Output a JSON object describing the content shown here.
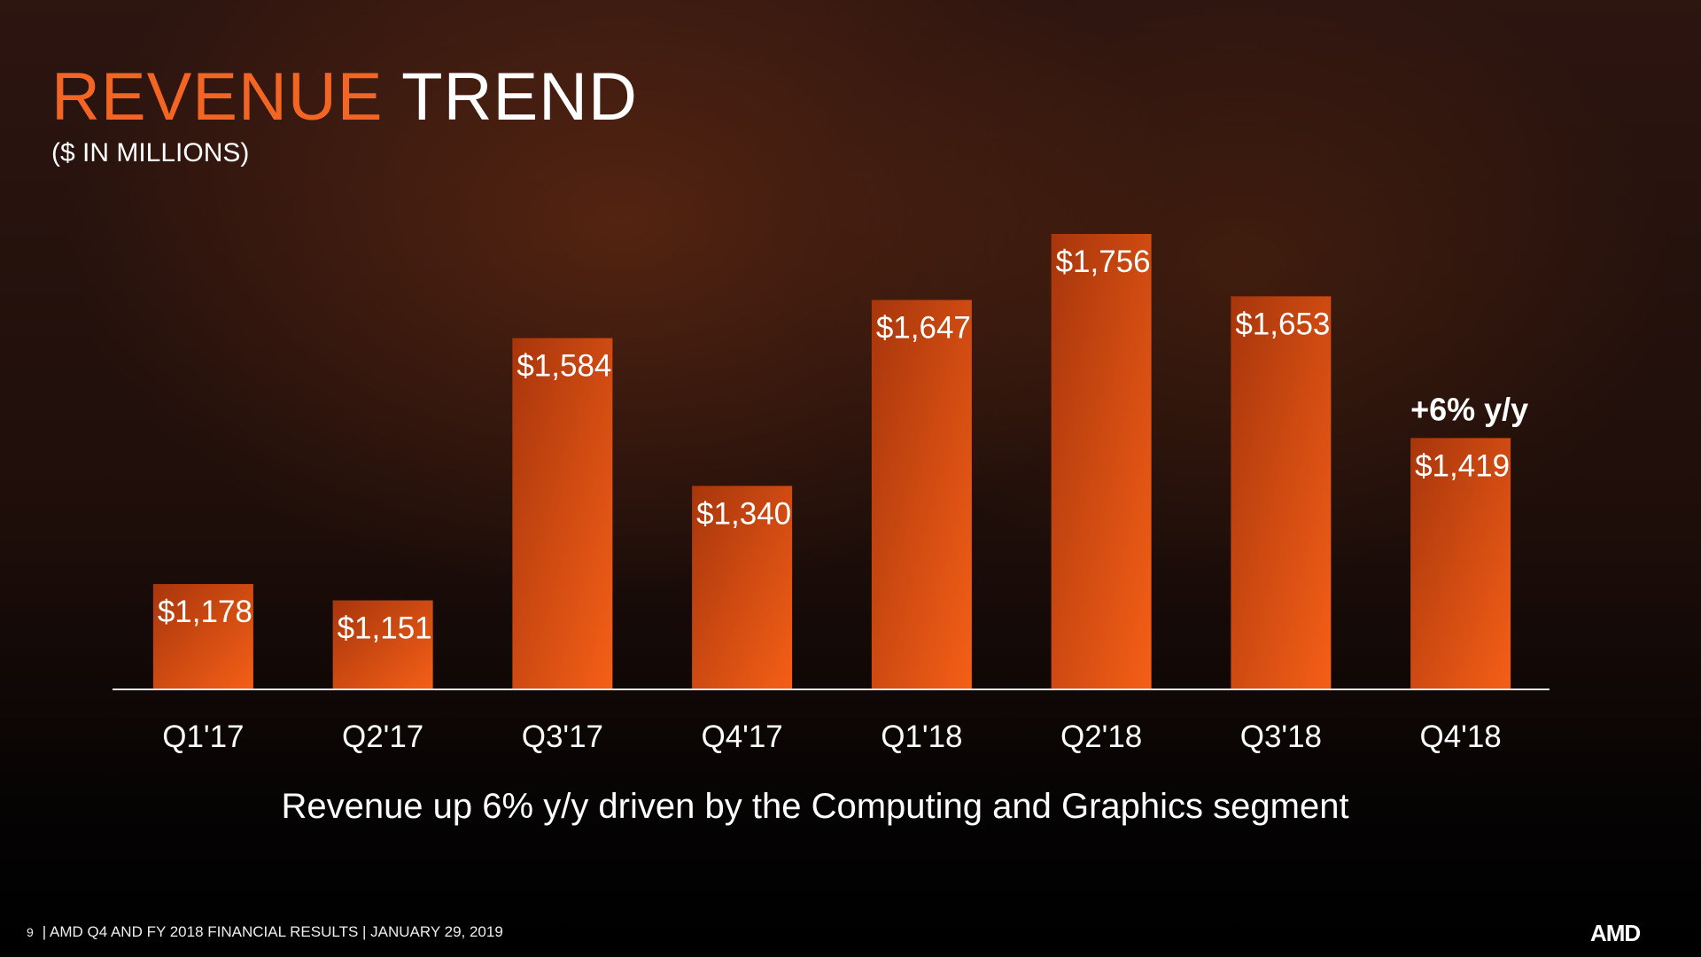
{
  "header": {
    "title_accent": "REVENUE",
    "title_rest": "TREND",
    "subtitle": "($ IN MILLIONS)"
  },
  "chart_data": {
    "type": "bar",
    "title": "REVENUE TREND",
    "ylabel": "($ IN MILLIONS)",
    "categories": [
      "Q1'17",
      "Q2'17",
      "Q3'17",
      "Q4'17",
      "Q1'18",
      "Q2'18",
      "Q3'18",
      "Q4'18"
    ],
    "values": [
      1178,
      1151,
      1584,
      1340,
      1647,
      1756,
      1653,
      1419
    ],
    "data_labels": [
      "$1,178",
      "$1,151",
      "$1,584",
      "$1,340",
      "$1,647",
      "$1,756",
      "$1,653",
      "$1,419"
    ],
    "ylim": [
      1004,
      1800
    ],
    "grid": false,
    "annotation": {
      "text": "+6% y/y",
      "category": "Q4'18"
    },
    "bar_colors": [
      "#a8360c",
      "#f55f17"
    ]
  },
  "caption": "Revenue up 6% y/y driven by the Computing and Graphics segment",
  "footer": {
    "page": "9",
    "text": "| AMD Q4 AND FY 2018 FINANCIAL RESULTS |  JANUARY 29, 2019",
    "logo": "AMD"
  }
}
